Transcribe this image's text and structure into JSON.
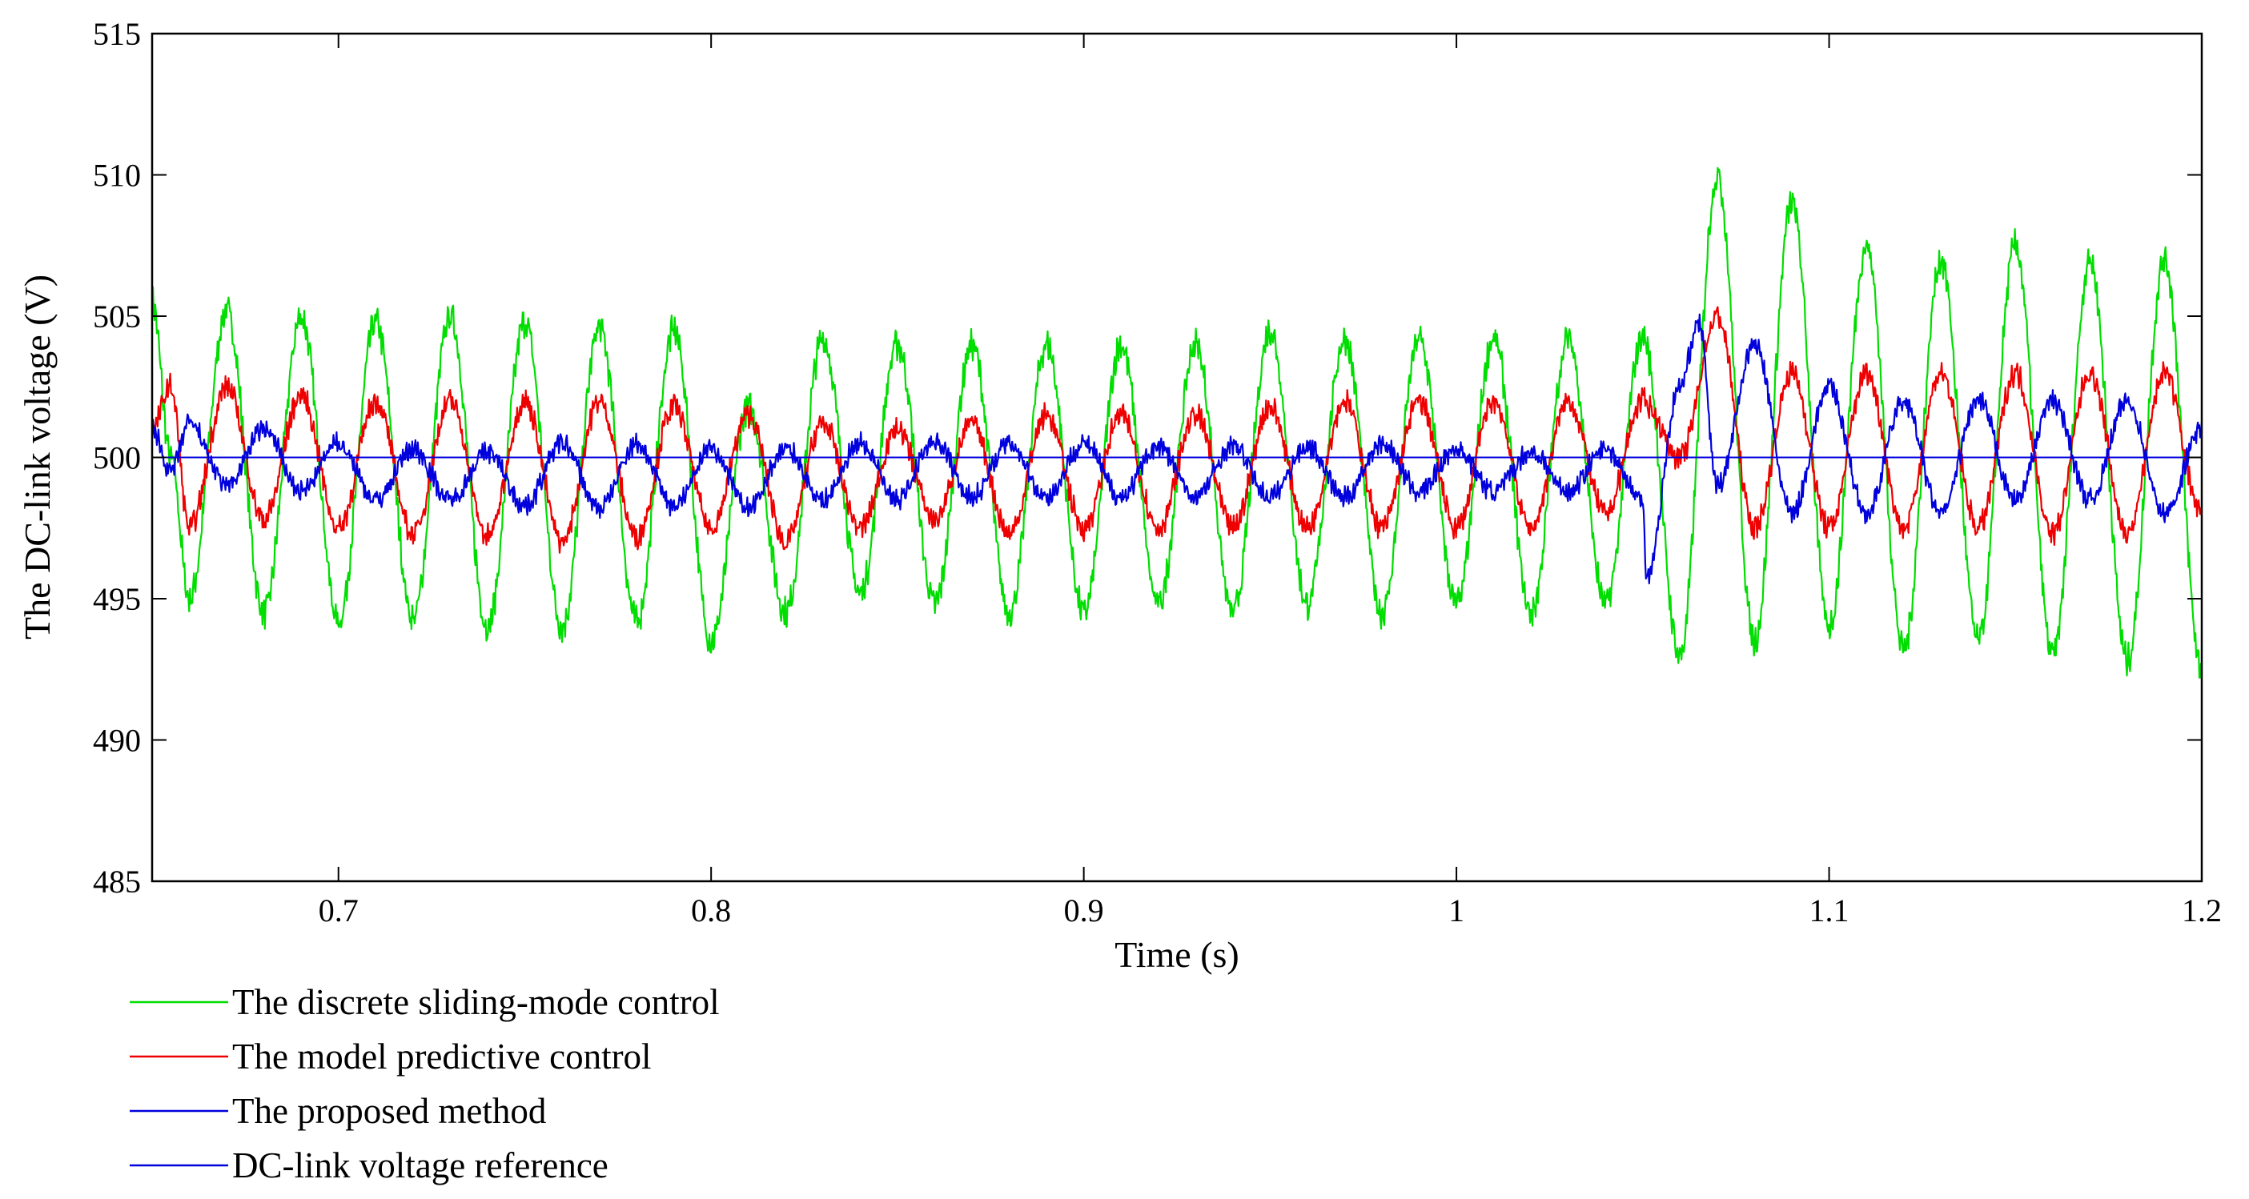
{
  "chart_data": {
    "type": "line",
    "title": "",
    "xlabel": "Time (s)",
    "ylabel": "The DC-link voltage (V)",
    "xlim": [
      0.65,
      1.2
    ],
    "ylim": [
      485,
      515
    ],
    "xticks": [
      0.7,
      0.8,
      0.9,
      1.0,
      1.1,
      1.2
    ],
    "xtick_labels": [
      "0.7",
      "0.8",
      "0.9",
      "1",
      "1.1",
      "1.2"
    ],
    "yticks": [
      485,
      490,
      495,
      500,
      505,
      510,
      515
    ],
    "ytick_labels": [
      "485",
      "490",
      "495",
      "500",
      "505",
      "510",
      "515"
    ],
    "grid": false,
    "legend_position": "below-left",
    "disturbance_time": 1.05,
    "series": [
      {
        "name": "The discrete sliding-mode control",
        "color": "#00dd00",
        "description": "oscillation about 500 V at 50 Hz, amplitude ~5.3 V before 1.05 s, peaks near 510 V after load change then ~6.5 V amplitude",
        "x": [
          0.65,
          0.655,
          0.66,
          0.67,
          0.68,
          0.69,
          0.7,
          0.71,
          0.72,
          0.73,
          0.74,
          0.75,
          0.76,
          0.77,
          0.78,
          0.79,
          0.8,
          0.81,
          0.82,
          0.83,
          0.84,
          0.85,
          0.86,
          0.87,
          0.88,
          0.89,
          0.9,
          0.91,
          0.92,
          0.93,
          0.94,
          0.95,
          0.96,
          0.97,
          0.98,
          0.99,
          1.0,
          1.01,
          1.02,
          1.03,
          1.04,
          1.05,
          1.06,
          1.07,
          1.08,
          1.09,
          1.1,
          1.11,
          1.12,
          1.13,
          1.14,
          1.15,
          1.16,
          1.17,
          1.18,
          1.19,
          1.2
        ],
        "y": [
          505.5,
          500.0,
          495.0,
          505.2,
          494.5,
          505.0,
          494.2,
          504.8,
          494.3,
          505.0,
          494.0,
          504.8,
          494.0,
          504.6,
          494.2,
          504.5,
          493.5,
          501.8,
          494.5,
          504.2,
          495.2,
          504.0,
          494.8,
          504.0,
          494.5,
          504.0,
          494.5,
          504.0,
          494.8,
          504.0,
          494.5,
          504.5,
          494.8,
          504.2,
          494.5,
          504.2,
          494.8,
          504.2,
          494.5,
          504.2,
          494.8,
          504.3,
          493.0,
          510.0,
          493.5,
          509.0,
          494.0,
          507.5,
          493.2,
          507.0,
          493.5,
          507.5,
          493.0,
          507.0,
          492.8,
          507.0,
          492.5
        ]
      },
      {
        "name": "The model predictive control",
        "color": "#ee0000",
        "description": "oscillation about ~499.7 V at 50 Hz in anti-phase with proposed method, amplitude ~2.3 V; after 1.05 s peaks ~505 V then ~503 V",
        "x": [
          0.65,
          0.655,
          0.66,
          0.67,
          0.68,
          0.69,
          0.7,
          0.71,
          0.72,
          0.73,
          0.74,
          0.75,
          0.76,
          0.77,
          0.78,
          0.79,
          0.8,
          0.81,
          0.82,
          0.83,
          0.84,
          0.85,
          0.86,
          0.87,
          0.88,
          0.89,
          0.9,
          0.91,
          0.92,
          0.93,
          0.94,
          0.95,
          0.96,
          0.97,
          0.98,
          0.99,
          1.0,
          1.01,
          1.02,
          1.03,
          1.04,
          1.05,
          1.06,
          1.07,
          1.08,
          1.09,
          1.1,
          1.11,
          1.12,
          1.13,
          1.14,
          1.15,
          1.16,
          1.17,
          1.18,
          1.19,
          1.2
        ],
        "y": [
          501.0,
          502.5,
          497.5,
          502.5,
          497.8,
          502.2,
          497.5,
          502.0,
          497.3,
          502.0,
          497.2,
          502.0,
          497.0,
          502.0,
          497.2,
          501.8,
          497.5,
          501.5,
          497.0,
          501.2,
          497.5,
          501.0,
          497.8,
          501.2,
          497.3,
          501.5,
          497.5,
          501.5,
          497.5,
          501.5,
          497.5,
          501.8,
          497.5,
          502.0,
          497.5,
          502.0,
          497.5,
          502.0,
          497.5,
          502.0,
          498.0,
          502.0,
          500.0,
          505.0,
          497.5,
          503.0,
          497.5,
          503.0,
          497.5,
          503.0,
          497.5,
          503.0,
          497.3,
          503.0,
          497.3,
          503.0,
          498.0
        ]
      },
      {
        "name": "The proposed method",
        "color": "#0000dd",
        "description": "oscillation about ~499.6 V at 50 Hz, amplitude ~1.3 V; dips to ~495.8 V at 1.05 s then peaks ~505 V and settles to ~2 V amplitude",
        "x": [
          0.65,
          0.655,
          0.66,
          0.67,
          0.68,
          0.69,
          0.7,
          0.71,
          0.72,
          0.73,
          0.74,
          0.75,
          0.76,
          0.77,
          0.78,
          0.79,
          0.8,
          0.81,
          0.82,
          0.83,
          0.84,
          0.85,
          0.86,
          0.87,
          0.88,
          0.89,
          0.9,
          0.91,
          0.92,
          0.93,
          0.94,
          0.95,
          0.96,
          0.97,
          0.98,
          0.99,
          1.0,
          1.01,
          1.02,
          1.03,
          1.04,
          1.05,
          1.051,
          1.06,
          1.065,
          1.07,
          1.08,
          1.09,
          1.1,
          1.11,
          1.12,
          1.13,
          1.14,
          1.15,
          1.16,
          1.17,
          1.18,
          1.19,
          1.2
        ],
        "y": [
          501.0,
          499.5,
          501.2,
          499.0,
          501.0,
          498.8,
          500.5,
          498.5,
          500.3,
          498.5,
          500.2,
          498.3,
          500.5,
          498.2,
          500.5,
          498.3,
          500.3,
          498.2,
          500.3,
          498.5,
          500.5,
          498.5,
          500.6,
          498.6,
          500.5,
          498.6,
          500.5,
          498.6,
          500.4,
          498.6,
          500.4,
          498.6,
          500.4,
          498.6,
          500.5,
          498.8,
          500.3,
          498.8,
          500.2,
          498.8,
          500.3,
          498.5,
          495.8,
          502.5,
          504.8,
          499.0,
          504.0,
          498.0,
          502.5,
          498.0,
          502.0,
          498.0,
          502.0,
          498.5,
          502.0,
          498.5,
          502.0,
          498.0,
          501.0
        ]
      },
      {
        "name": "DC-link voltage reference",
        "color": "#0000dd",
        "description": "constant reference at 500 V",
        "x": [
          0.65,
          1.2
        ],
        "y": [
          500,
          500
        ]
      }
    ],
    "series_style": {
      "frequency_hz": 50,
      "ripple_note": "traces carry high-frequency switching ripple"
    }
  }
}
